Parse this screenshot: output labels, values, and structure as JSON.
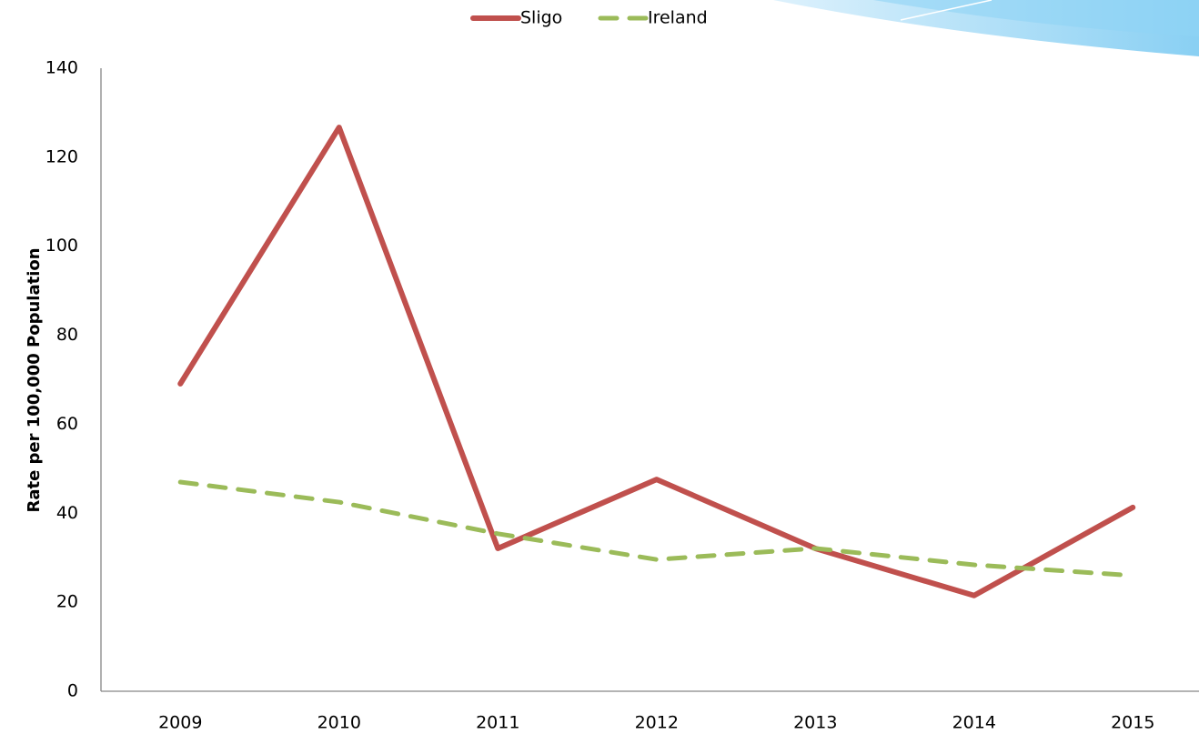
{
  "chart_data": {
    "type": "line",
    "y_label": "Rate per 100,000 Population",
    "categories": [
      "2009",
      "2010",
      "2011",
      "2012",
      "2013",
      "2014",
      "2015"
    ],
    "series": [
      {
        "name": "Sligo",
        "color": "#c0504d",
        "dash": false,
        "values": [
          69.1,
          126.7,
          32.1,
          47.6,
          32.1,
          21.5,
          41.3
        ]
      },
      {
        "name": "Ireland",
        "color": "#9bbb59",
        "dash": true,
        "values": [
          47,
          42.5,
          35.4,
          29.6,
          32.1,
          28.4,
          26
        ]
      }
    ],
    "ylim": [
      0,
      140
    ],
    "yticks": [
      0,
      20,
      40,
      60,
      80,
      100,
      120,
      140
    ],
    "grid": false,
    "legend": "top"
  }
}
